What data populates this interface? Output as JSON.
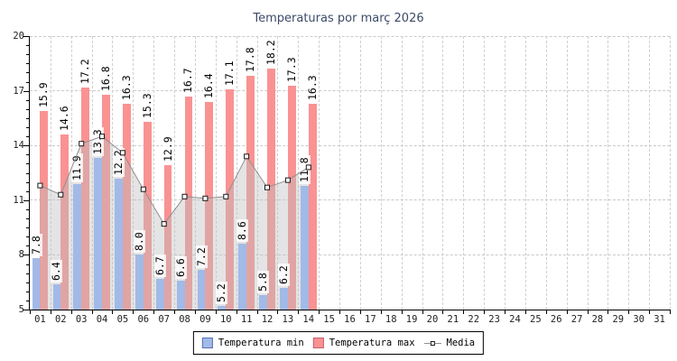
{
  "chart_data": {
    "type": "bar",
    "title": "Temperaturas por març 2026",
    "title_color": "#3c4a68",
    "x_categories": [
      "01",
      "02",
      "03",
      "04",
      "05",
      "06",
      "07",
      "08",
      "09",
      "10",
      "11",
      "12",
      "13",
      "14",
      "15",
      "16",
      "17",
      "18",
      "19",
      "20",
      "21",
      "22",
      "23",
      "24",
      "25",
      "26",
      "27",
      "28",
      "29",
      "30",
      "31"
    ],
    "series": [
      {
        "name": "Temperatura min",
        "render": "bar",
        "color": "#a1bae7",
        "border_color": "#5870b8",
        "values": [
          7.8,
          6.4,
          11.9,
          13.3,
          12.2,
          8.0,
          6.7,
          6.6,
          7.2,
          5.2,
          8.6,
          5.8,
          6.2,
          11.8
        ]
      },
      {
        "name": "Temperatura max",
        "render": "bar",
        "color": "#fa9292",
        "border_color": "#c86070",
        "values": [
          15.9,
          14.6,
          17.2,
          16.8,
          16.3,
          15.3,
          12.9,
          16.7,
          16.4,
          17.1,
          17.8,
          18.2,
          17.3,
          16.3
        ]
      },
      {
        "name": "Media",
        "render": "line-area",
        "line_color": "#8f8f8f",
        "area_fill": "rgba(190,190,190,0.42)",
        "marker": "white-square",
        "values": [
          11.8,
          11.3,
          14.1,
          14.5,
          13.6,
          11.6,
          9.7,
          11.2,
          11.1,
          11.2,
          13.4,
          11.7,
          12.1,
          12.8
        ]
      }
    ],
    "ylim": [
      5,
      20
    ],
    "yticks": [
      5,
      8,
      11,
      14,
      17,
      20
    ],
    "y_minor_step": 0.5,
    "grid": "dashed-both",
    "legend_position": "bottom-center",
    "value_labels": "rotated-90-above-bars"
  }
}
